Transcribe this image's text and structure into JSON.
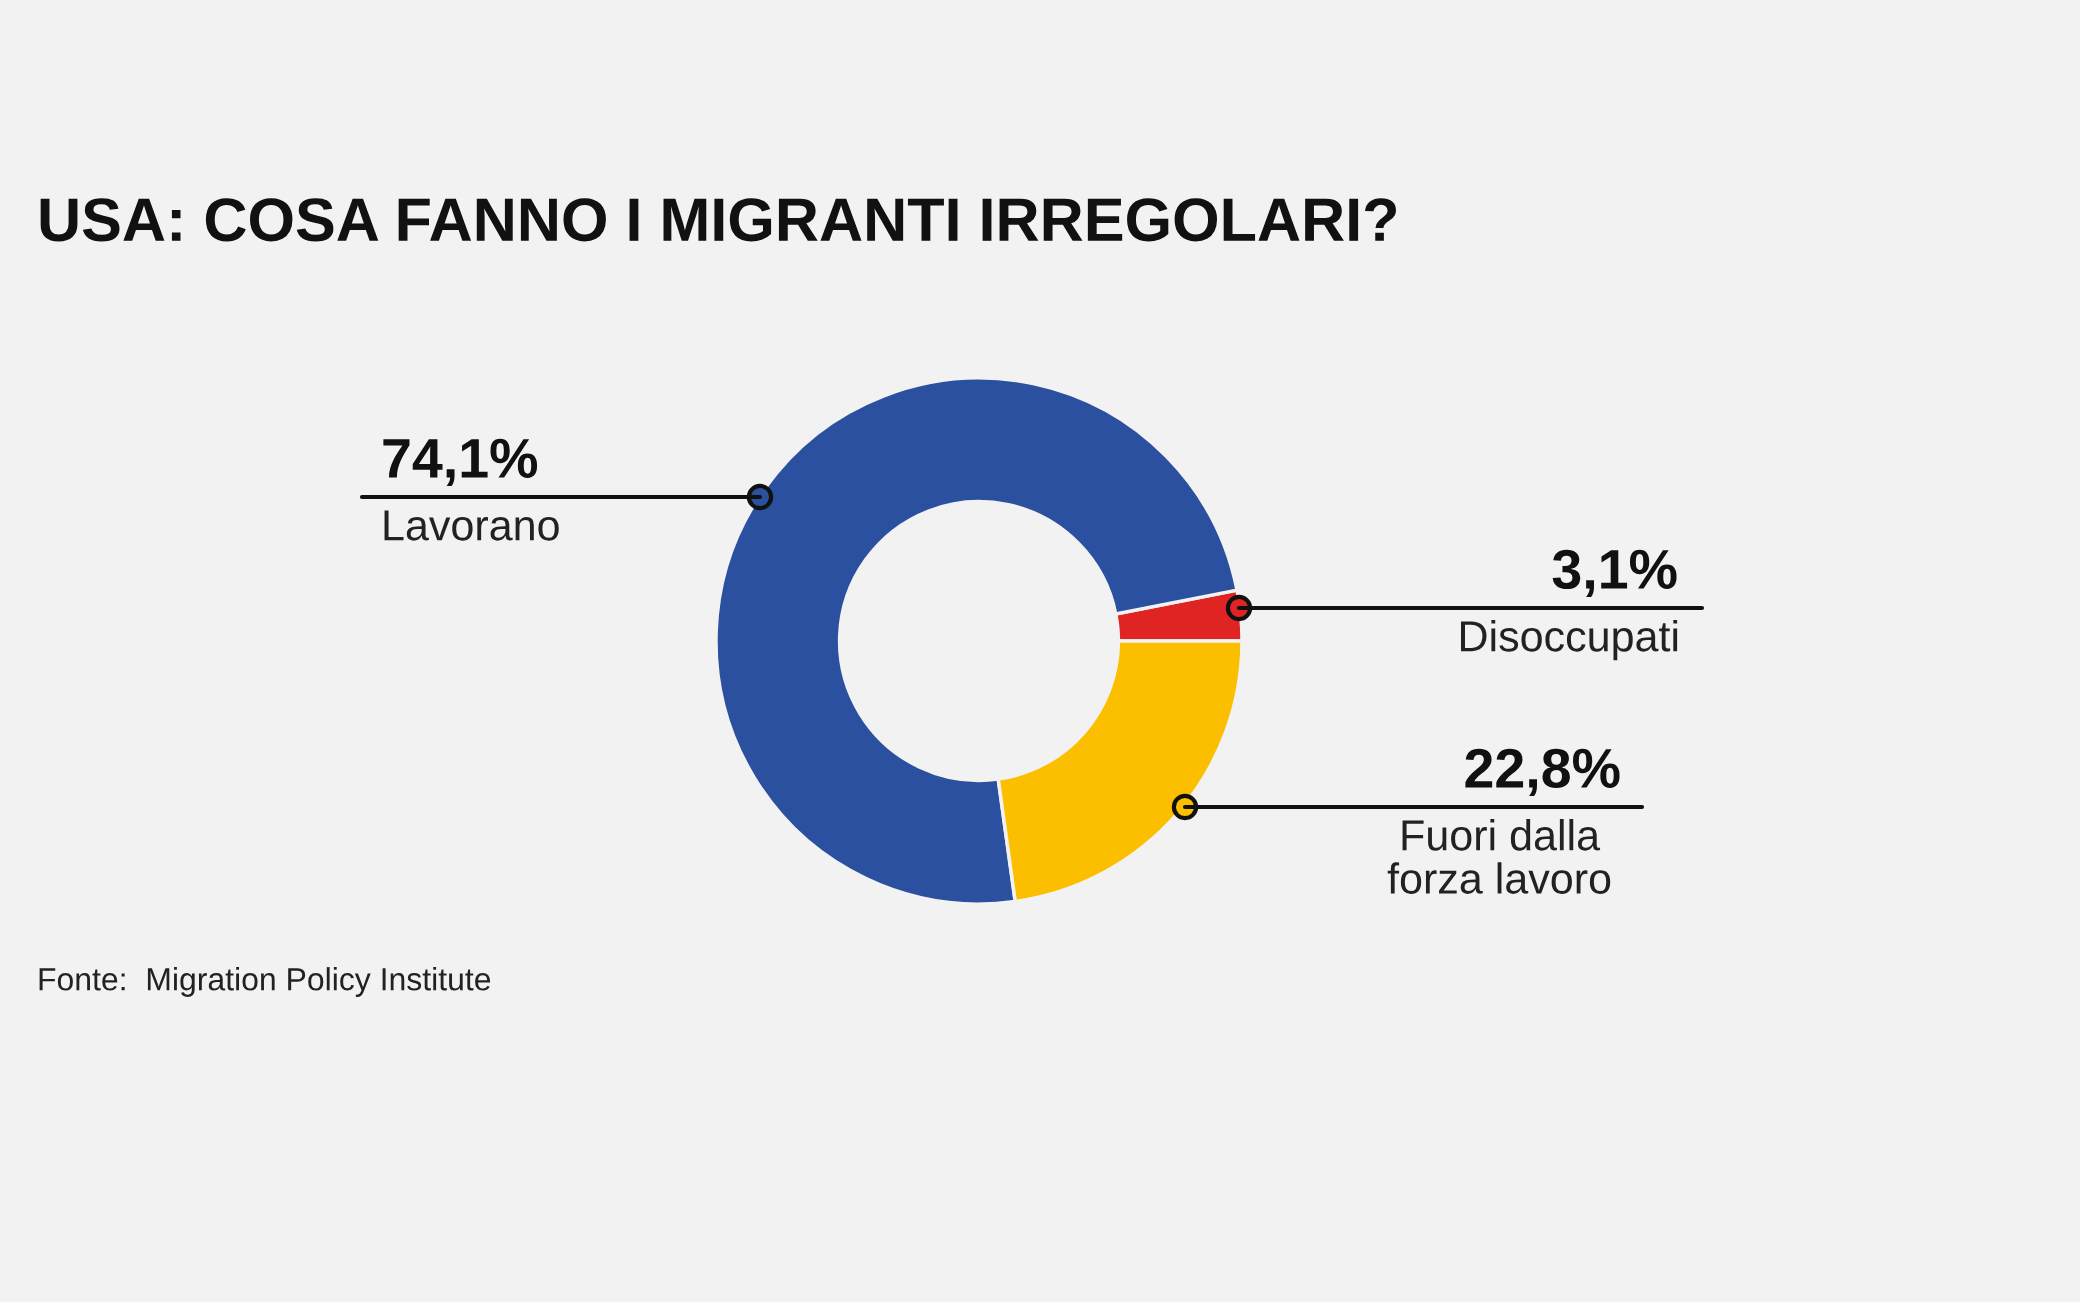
{
  "chart_data": {
    "type": "donut",
    "title": "USA: COSA FANNO I MIGRANTI IRREGOLARI?",
    "categories": [
      "Disoccupati",
      "Lavorano",
      "Fuori dalla\nforza lavoro"
    ],
    "values": [
      3.1,
      74.1,
      22.8
    ],
    "colors": [
      "#e02424",
      "#2b50a0",
      "#fbbf00"
    ],
    "value_labels": [
      "3,1%",
      "74,1%",
      "22,8%"
    ],
    "annotations": [
      "Fonte:  Migration Policy Institute"
    ]
  }
}
